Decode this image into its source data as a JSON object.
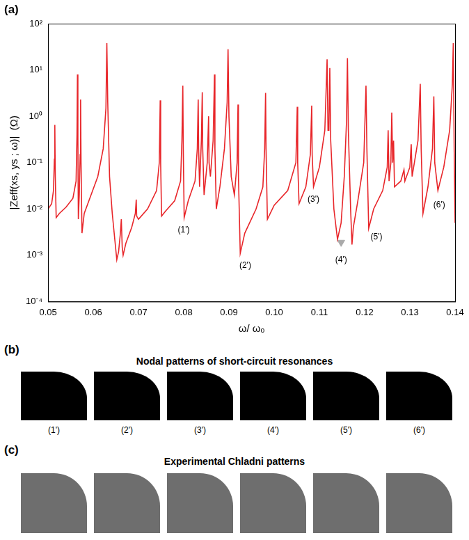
{
  "chart_data": {
    "type": "line",
    "x_label": "ω/ ωₒ",
    "y_label": "|Zeff(xs, ys ; ω)|  (Ω)",
    "log": "y",
    "grid": false,
    "color": "#e8262a",
    "xlim": [
      0.05,
      0.14
    ],
    "xticks": [
      0.05,
      0.06,
      0.07,
      0.08,
      0.09,
      {
        "value": 0.1,
        "label": "0.10"
      },
      0.11,
      0.12,
      0.13,
      0.14
    ],
    "ylim": [
      0.0001,
      100
    ],
    "yticks": [
      {
        "value": 0.0001,
        "label": "10⁻⁴"
      },
      {
        "value": 0.001,
        "label": "10⁻³"
      },
      {
        "value": 0.01,
        "label": "10⁻²"
      },
      {
        "value": 0.1,
        "label": "10⁻¹"
      },
      {
        "value": 1,
        "label": "10⁰"
      },
      {
        "value": 10,
        "label": "10¹"
      },
      {
        "value": 100,
        "label": "10²"
      }
    ],
    "x": [
      0.05,
      0.0508,
      0.0512,
      0.0514,
      0.0515,
      0.0516,
      0.0518,
      0.0525,
      0.054,
      0.0555,
      0.0562,
      0.0564,
      0.0565,
      0.0566,
      0.0567,
      0.0569,
      0.0571,
      0.0572,
      0.0573,
      0.0575,
      0.058,
      0.0595,
      0.061,
      0.0622,
      0.0628,
      0.063,
      0.0632,
      0.0636,
      0.0642,
      0.0648,
      0.0652,
      0.0656,
      0.066,
      0.0662,
      0.0664,
      0.0666,
      0.0672,
      0.0685,
      0.0693,
      0.0695,
      0.0696,
      0.07,
      0.072,
      0.074,
      0.0746,
      0.0748,
      0.0749,
      0.0751,
      0.076,
      0.078,
      0.0793,
      0.0796,
      0.0798,
      0.0799,
      0.0801,
      0.081,
      0.0825,
      0.083,
      0.0832,
      0.0833,
      0.0835,
      0.0839,
      0.0841,
      0.0842,
      0.0845,
      0.0852,
      0.0855,
      0.0856,
      0.0859,
      0.0865,
      0.0868,
      0.0869,
      0.0872,
      0.088,
      0.089,
      0.0896,
      0.0898,
      0.09,
      0.0905,
      0.0912,
      0.0918,
      0.092,
      0.0921,
      0.0925,
      0.0935,
      0.096,
      0.0975,
      0.0979,
      0.0981,
      0.0982,
      0.0985,
      0.1,
      0.103,
      0.1048,
      0.1051,
      0.1052,
      0.1055,
      0.107,
      0.108,
      0.1083,
      0.1084,
      0.1087,
      0.11,
      0.1112,
      0.1117,
      0.1119,
      0.1121,
      0.1123,
      0.1125,
      0.1132,
      0.114,
      0.1148,
      0.1155,
      0.116,
      0.1162,
      0.1164,
      0.1169,
      0.1172,
      0.1175,
      0.1185,
      0.1198,
      0.1203,
      0.1205,
      0.1209,
      0.122,
      0.124,
      0.125,
      0.1252,
      0.1254,
      0.1258,
      0.126,
      0.1262,
      0.1264,
      0.1266,
      0.128,
      0.1287,
      0.1289,
      0.13,
      0.1303,
      0.1305,
      0.1318,
      0.1323,
      0.1325,
      0.1329,
      0.134,
      0.135,
      0.1353,
      0.1355,
      0.1362,
      0.1375,
      0.1388,
      0.1394,
      0.1396,
      0.1398,
      0.14
    ],
    "values": [
      0.01,
      0.013,
      0.025,
      0.12,
      0.65,
      0.05,
      0.0065,
      0.008,
      0.011,
      0.017,
      0.04,
      0.4,
      8.0,
      0.3,
      0.006,
      0.02,
      0.15,
      2.3,
      0.1,
      0.003,
      0.008,
      0.02,
      0.05,
      0.2,
      1.5,
      38,
      2,
      0.05,
      0.008,
      0.002,
      0.0008,
      0.0012,
      0.003,
      0.006,
      0.0015,
      0.001,
      0.0018,
      0.004,
      0.008,
      0.016,
      0.007,
      0.006,
      0.01,
      0.025,
      0.1,
      2.2,
      0.1,
      0.007,
      0.009,
      0.015,
      0.04,
      0.3,
      4.6,
      0.2,
      0.0065,
      0.015,
      0.04,
      0.2,
      2.3,
      0.2,
      0.03,
      0.3,
      3.3,
      0.2,
      0.02,
      0.1,
      1.0,
      0.1,
      0.05,
      0.3,
      8.0,
      0.2,
      0.01,
      0.03,
      0.2,
      2,
      28,
      1,
      0.05,
      0.02,
      0.1,
      1.8,
      0.05,
      0.0011,
      0.003,
      0.01,
      0.03,
      0.2,
      3.2,
      0.2,
      0.006,
      0.012,
      0.025,
      0.1,
      1.6,
      0.1,
      0.013,
      0.03,
      0.15,
      1.7,
      0.15,
      0.03,
      0.08,
      0.5,
      17,
      0.5,
      0.5,
      11,
      0.3,
      0.01,
      0.0022,
      0.005,
      0.05,
      0.8,
      18,
      0.5,
      0.01,
      0.0017,
      0.004,
      0.015,
      0.1,
      4.6,
      0.2,
      0.0038,
      0.01,
      0.025,
      0.08,
      0.5,
      0.04,
      0.1,
      1.2,
      0.1,
      0.3,
      0.03,
      0.04,
      0.07,
      0.04,
      0.08,
      0.25,
      0.05,
      0.3,
      5.0,
      0.2,
      0.008,
      0.03,
      0.2,
      2.7,
      0.1,
      0.025,
      0.08,
      0.5,
      5,
      38,
      0.2,
      0.005
    ],
    "series": [
      {
        "type": "scatter",
        "marker": "triangle",
        "color": "#aaaaaa",
        "x": [
          0.1148
        ],
        "values": [
          0.0019
        ]
      }
    ],
    "annotations": [
      {
        "text": "(1')",
        "x": 0.08,
        "y": 0.0035
      },
      {
        "text": "(2')",
        "x": 0.0936,
        "y": 0.0006
      },
      {
        "text": "(3')",
        "x": 0.1087,
        "y": 0.016
      },
      {
        "text": "(4')",
        "x": 0.1148,
        "y": 0.0008
      },
      {
        "text": "(5')",
        "x": 0.1226,
        "y": 0.0025
      },
      {
        "text": "(6')",
        "x": 0.1365,
        "y": 0.012
      }
    ]
  },
  "panels": {
    "a": {
      "letter": "(a)"
    },
    "b": {
      "letter": "(b)",
      "title": "Nodal patterns of short-circuit resonances",
      "labels": [
        "(1')",
        "(2')",
        "(3')",
        "(4')",
        "(5')",
        "(6')"
      ]
    },
    "c": {
      "letter": "(c)",
      "title": "Experimental Chladni patterns"
    }
  }
}
